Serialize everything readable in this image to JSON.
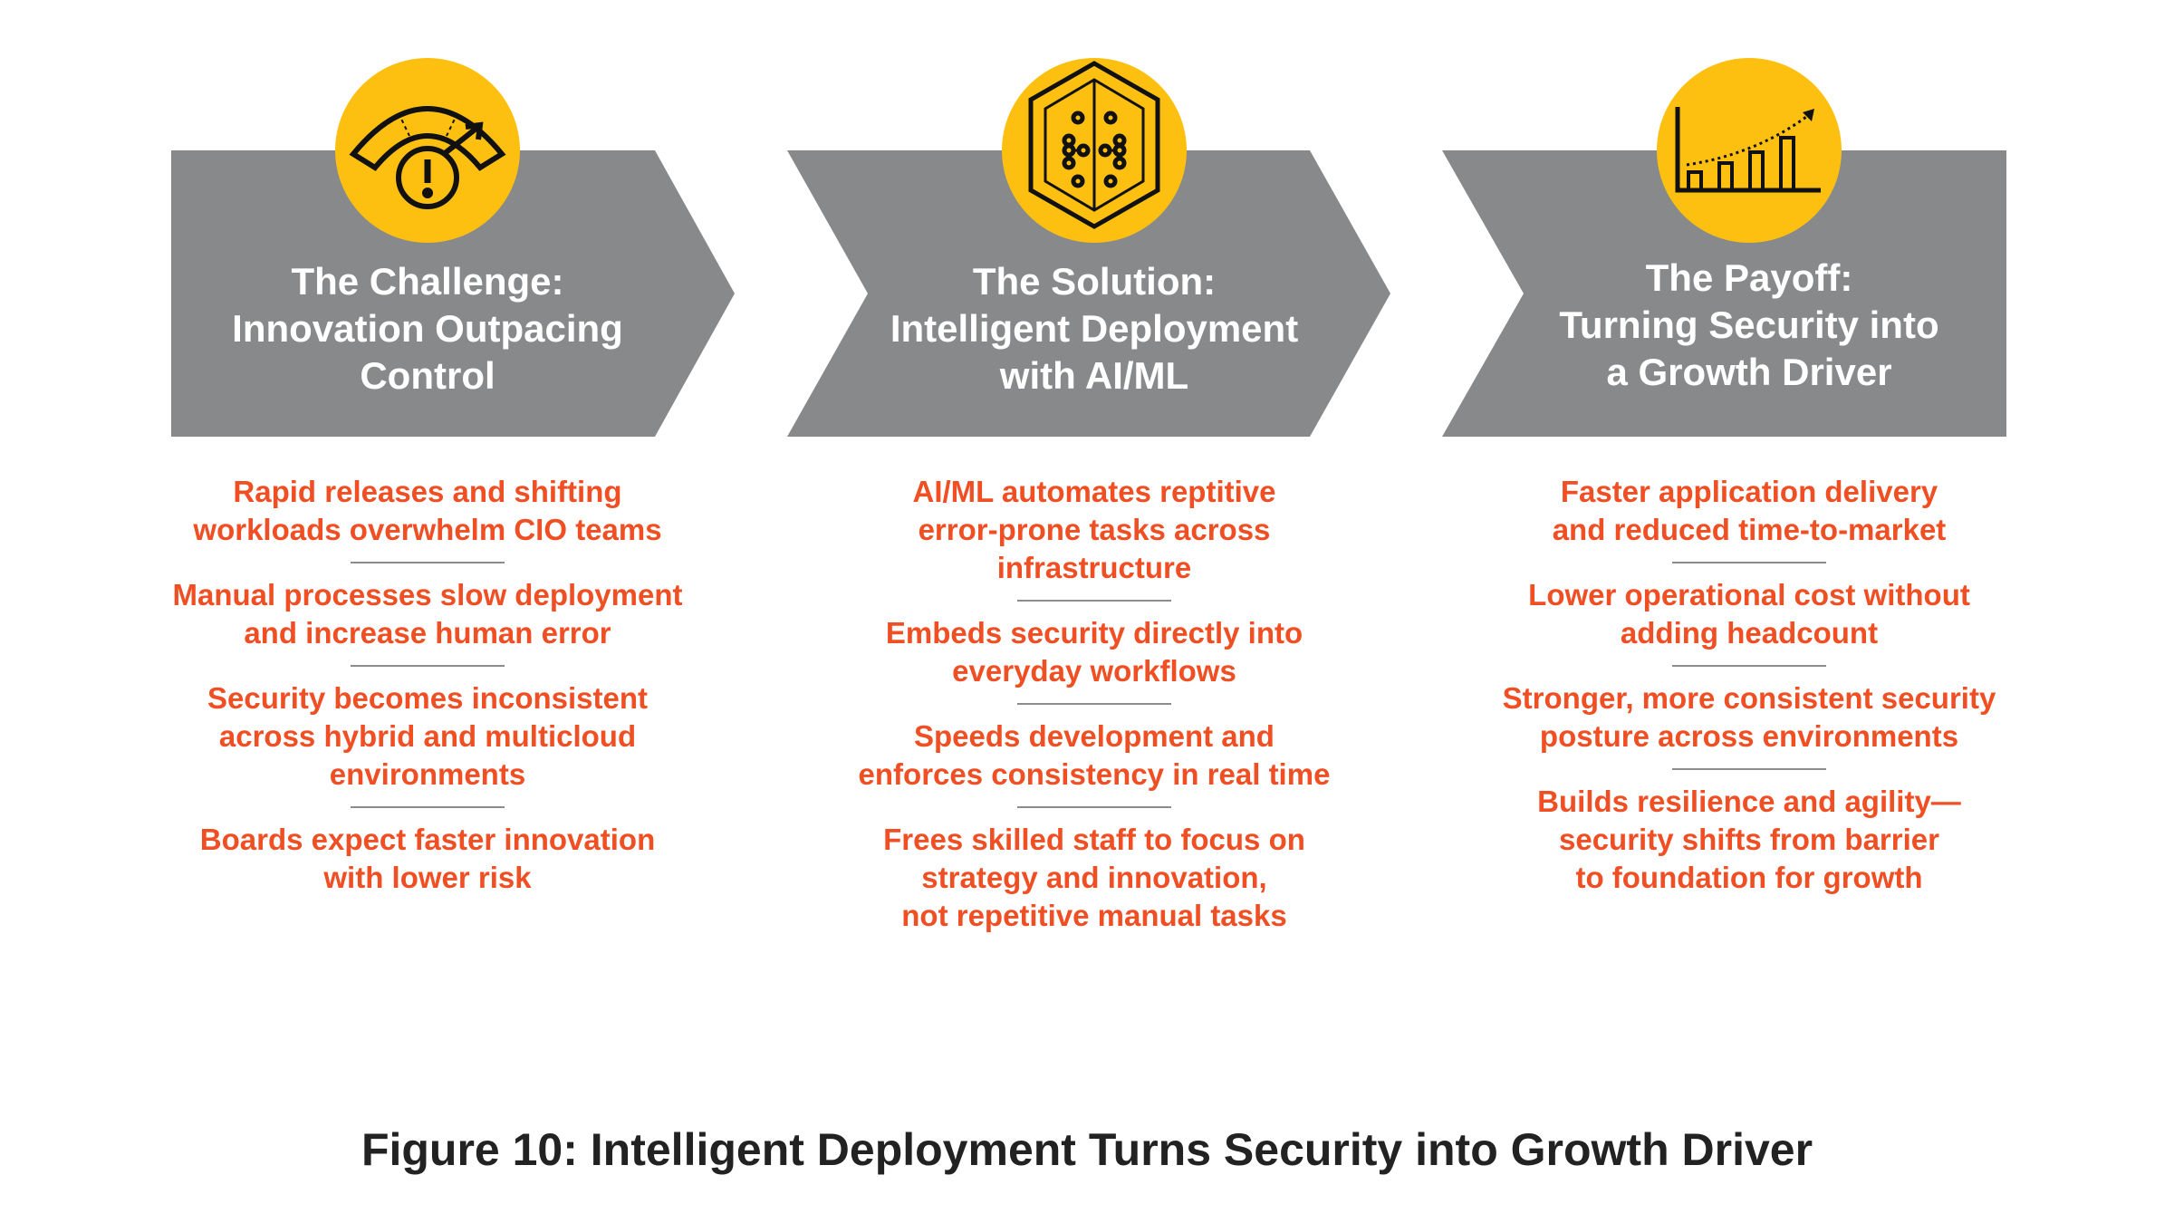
{
  "colors": {
    "chevron": "#87898a",
    "accent_circle": "#fdc010",
    "bullet_text": "#f04e23",
    "caption": "#222222"
  },
  "stages": [
    {
      "icon": "warning-gauge-icon",
      "title_lines": [
        "The Challenge:",
        "Innovation Outpacing",
        "Control"
      ],
      "items": [
        [
          "Rapid releases and shifting",
          "workloads overwhelm CIO teams"
        ],
        [
          "Manual processes slow deployment",
          "and increase human error"
        ],
        [
          "Security becomes inconsistent",
          "across hybrid and multicloud",
          "environments"
        ],
        [
          "Boards expect faster innovation",
          "with lower risk"
        ]
      ]
    },
    {
      "icon": "ai-chip-icon",
      "title_lines": [
        "The Solution:",
        "Intelligent Deployment",
        "with AI/ML"
      ],
      "items": [
        [
          "AI/ML automates reptitive",
          "error-prone tasks across",
          "infrastructure"
        ],
        [
          "Embeds security directly into",
          "everyday workflows"
        ],
        [
          "Speeds development and",
          "enforces consistency in real time"
        ],
        [
          "Frees skilled staff to focus on",
          "strategy and innovation,",
          "not repetitive manual tasks"
        ]
      ]
    },
    {
      "icon": "growth-chart-icon",
      "title_lines": [
        "The Payoff:",
        "Turning Security into",
        "a Growth Driver"
      ],
      "items": [
        [
          "Faster application delivery",
          "and reduced time-to-market"
        ],
        [
          "Lower operational cost without",
          "adding headcount"
        ],
        [
          "Stronger, more consistent security",
          "posture across environments"
        ],
        [
          "Builds resilience and agility—",
          "security shifts from barrier",
          "to foundation for growth"
        ]
      ]
    }
  ],
  "caption": "Figure 10:  Intelligent Deployment Turns Security into Growth Driver"
}
